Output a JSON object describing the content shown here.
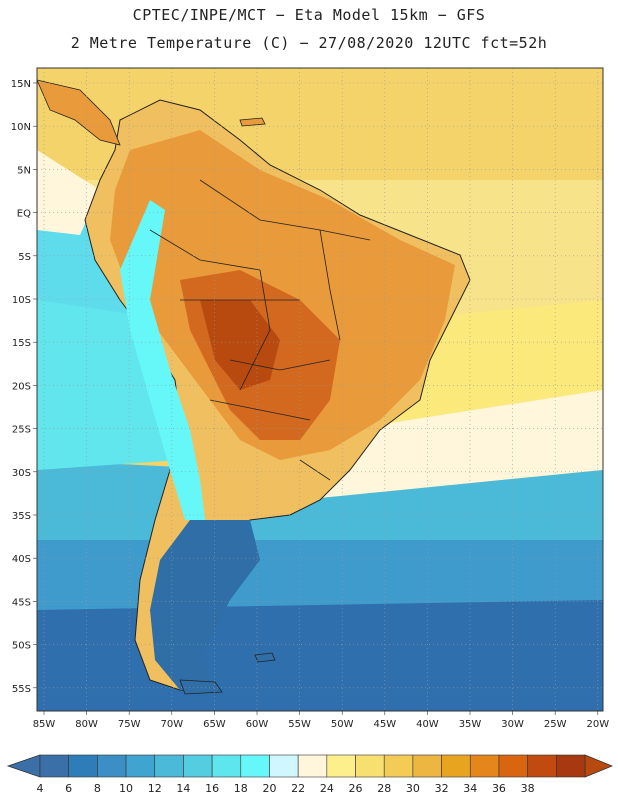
{
  "title": {
    "line1": "CPTEC/INPE/MCT −  Eta Model 15km − GFS",
    "line2": "2 Metre Temperature (C) − 27/08/2020 12UTC fct=52h"
  },
  "map": {
    "lat_labels": [
      "15N",
      "10N",
      "5N",
      "EQ",
      "5S",
      "10S",
      "15S",
      "20S",
      "25S",
      "30S",
      "35S",
      "40S",
      "45S",
      "50S",
      "55S"
    ],
    "lon_labels": [
      "85W",
      "80W",
      "75W",
      "70W",
      "65W",
      "60W",
      "55W",
      "50W",
      "45W",
      "40W",
      "35W",
      "30W",
      "25W",
      "20W"
    ],
    "lat_range": [
      17,
      -59
    ],
    "lon_range": [
      -86,
      -20
    ]
  },
  "colorbar": {
    "ticks": [
      "4",
      "6",
      "8",
      "10",
      "12",
      "14",
      "16",
      "18",
      "20",
      "22",
      "24",
      "26",
      "28",
      "30",
      "32",
      "34",
      "36",
      "38"
    ],
    "colors": [
      "#3a6fa8",
      "#2f7db8",
      "#3b8fc4",
      "#3fa5d0",
      "#4bbad8",
      "#55cde0",
      "#5ee6ee",
      "#66f8f8",
      "#d0f6ff",
      "#fff6dc",
      "#fdf08c",
      "#f8e070",
      "#f2cc55",
      "#ecb640",
      "#e9a41f",
      "#e4861c",
      "#d96510",
      "#c04a10",
      "#a83810"
    ],
    "under_color": "#3a6fa8",
    "over_color": "#b84a10"
  },
  "palette": {
    "ocean_warm": "#f3d36a",
    "ocean_tropic": "#f7e48a",
    "ocean_pale": "#fff6dc",
    "ocean_cool": "#62e6ee",
    "ocean_cold": "#3e9bcc",
    "ocean_deep": "#2f6fae",
    "land_hot": "#d2691e",
    "land_warm": "#e99a3a",
    "land_mid": "#f0c060",
    "land_cold": "#2f6ea6"
  }
}
